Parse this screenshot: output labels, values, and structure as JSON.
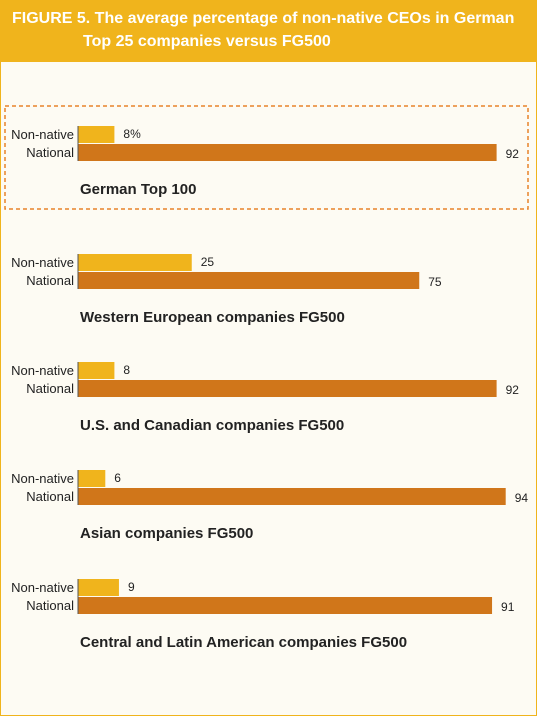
{
  "figure": {
    "title_line1": "FIGURE 5. The average percentage of non-native CEOs in German",
    "title_line2": "Top 25 companies versus FG500"
  },
  "colors": {
    "header": "#f0b41c",
    "non_native_bar": "#f0b41c",
    "national_bar": "#d0761a",
    "highlight_border": "#e8832a",
    "text": "#222222"
  },
  "chart_data": {
    "type": "bar",
    "orientation": "horizontal",
    "title": "FIGURE 5. The average percentage of non-native CEOs in German Top 25 companies versus FG500",
    "xlim": [
      0,
      100
    ],
    "series": [
      {
        "name": "Non-native",
        "color": "#f0b41c"
      },
      {
        "name": "National",
        "color": "#d0761a"
      }
    ],
    "groups": [
      {
        "label": "German Top 100",
        "non_native": 8,
        "national": 92,
        "non_native_label": "8%",
        "national_label": "92",
        "highlighted": true
      },
      {
        "label": "Western European companies FG500",
        "non_native": 25,
        "national": 75,
        "non_native_label": "25",
        "national_label": "75",
        "highlighted": false
      },
      {
        "label": "U.S. and Canadian companies FG500",
        "non_native": 8,
        "national": 92,
        "non_native_label": "8",
        "national_label": "92",
        "highlighted": false
      },
      {
        "label": "Asian companies FG500",
        "non_native": 6,
        "national": 94,
        "non_native_label": "6",
        "national_label": "94",
        "highlighted": false
      },
      {
        "label": "Central and Latin American companies FG500",
        "non_native": 9,
        "national": 91,
        "non_native_label": "9",
        "national_label": "91",
        "highlighted": false
      }
    ]
  }
}
